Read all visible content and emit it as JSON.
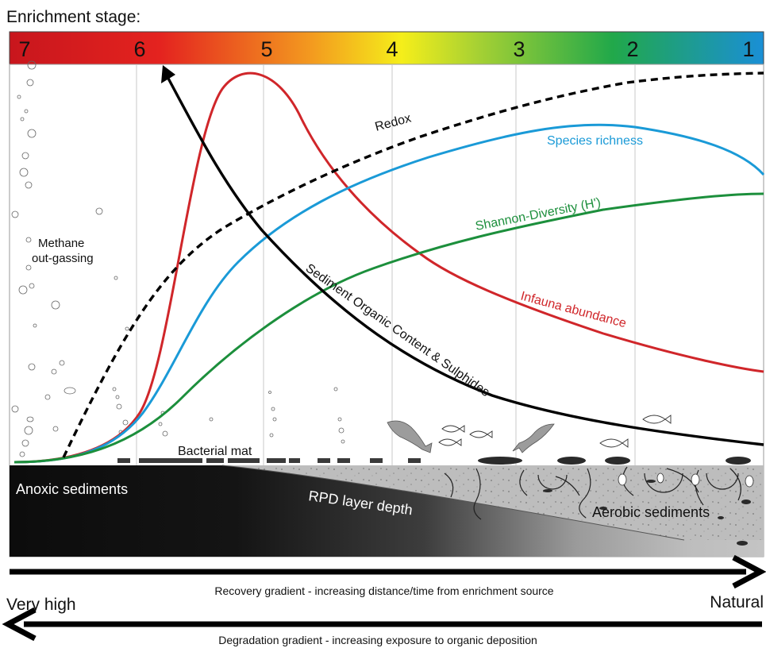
{
  "header": {
    "title": "Enrichment stage:",
    "stages": [
      "7",
      "6",
      "5",
      "4",
      "3",
      "2",
      "1"
    ]
  },
  "curves": {
    "redox": "Redox",
    "species_richness": "Species richness",
    "shannon": "Shannon-Diversity (H')",
    "infauna": "Infauna abundance",
    "organic": "Sediment Organic Content & Sulphides"
  },
  "annotations": {
    "methane_line1": "Methane",
    "methane_line2": "out-gassing",
    "bacterial_mat": "Bacterial mat",
    "anoxic": "Anoxic sediments",
    "rpd": "RPD layer depth",
    "aerobic": "Aerobic sediments"
  },
  "gradients": {
    "recovery": "Recovery gradient - increasing distance/time from enrichment source",
    "degradation": "Degradation gradient - increasing exposure to organic deposition",
    "left_label": "Very high",
    "right_label": "Natural"
  },
  "colors": {
    "infauna": "#d0262a",
    "species_richness": "#1a9ad7",
    "shannon": "#1c8f3c",
    "organic": "#000000",
    "redox": "#000000"
  }
}
